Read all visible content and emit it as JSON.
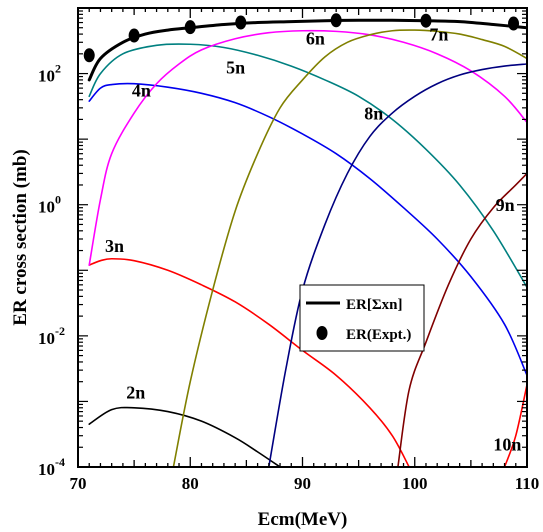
{
  "chart_data": {
    "type": "line",
    "title": "",
    "xlabel": "Ecm(MeV)",
    "ylabel": "ER cross section (mb)",
    "xlim": [
      70,
      110
    ],
    "ylim": [
      0.0001,
      1000
    ],
    "yscale": "log",
    "x_ticks": [
      {
        "value": 70,
        "label": "70"
      },
      {
        "value": 80,
        "label": "80"
      },
      {
        "value": 90,
        "label": "90"
      },
      {
        "value": 100,
        "label": "100"
      },
      {
        "value": 110,
        "label": "110"
      }
    ],
    "y_ticks": [
      {
        "value": 0.0001,
        "base": "10",
        "exp": "-4"
      },
      {
        "value": 0.01,
        "base": "10",
        "exp": "-2"
      },
      {
        "value": 1,
        "base": "10",
        "exp": "0"
      },
      {
        "value": 100,
        "base": "10",
        "exp": "2"
      }
    ],
    "grid": false,
    "legend_position": "center-right",
    "legend": [
      {
        "label": "ER[Σxn]",
        "marker": "line",
        "color": "#000000"
      },
      {
        "label": "ER(Expt.)",
        "marker": "dot",
        "color": "#000000"
      }
    ],
    "series": [
      {
        "label": "2n",
        "color": "#000000",
        "label_at": [
          74.3,
          0.0011
        ],
        "points": [
          [
            71,
            0.00045
          ],
          [
            73,
            0.00075
          ],
          [
            75,
            0.0008
          ],
          [
            78,
            0.0007
          ],
          [
            81,
            0.0005
          ],
          [
            84,
            0.00028
          ],
          [
            86,
            0.00017
          ],
          [
            88,
            0.0001
          ]
        ]
      },
      {
        "label": "3n",
        "color": "#ff0000",
        "label_at": [
          72.4,
          0.19
        ],
        "points": [
          [
            71,
            0.12
          ],
          [
            72,
            0.14
          ],
          [
            73,
            0.15
          ],
          [
            75,
            0.14
          ],
          [
            78,
            0.1
          ],
          [
            81,
            0.06
          ],
          [
            84,
            0.033
          ],
          [
            87,
            0.015
          ],
          [
            90,
            0.006
          ],
          [
            93,
            0.0025
          ],
          [
            96,
            0.0008
          ],
          [
            98,
            0.0003
          ],
          [
            99.5,
            0.0001
          ]
        ]
      },
      {
        "label": "4n",
        "color": "#0000ee",
        "label_at": [
          74.8,
          45
        ],
        "points": [
          [
            71,
            38
          ],
          [
            72,
            60
          ],
          [
            73,
            68
          ],
          [
            75,
            70
          ],
          [
            78,
            62
          ],
          [
            81,
            50
          ],
          [
            84,
            36
          ],
          [
            87,
            22
          ],
          [
            90,
            12
          ],
          [
            93,
            6
          ],
          [
            96,
            2.5
          ],
          [
            99,
            0.9
          ],
          [
            102,
            0.3
          ],
          [
            105,
            0.08
          ],
          [
            108,
            0.015
          ],
          [
            110,
            0.0025
          ]
        ]
      },
      {
        "label": "5n",
        "color": "#008080",
        "label_at": [
          83.2,
          100
        ],
        "points": [
          [
            71,
            45
          ],
          [
            72,
            100
          ],
          [
            74,
            200
          ],
          [
            77,
            270
          ],
          [
            80,
            280
          ],
          [
            83,
            250
          ],
          [
            86,
            190
          ],
          [
            89,
            130
          ],
          [
            92,
            80
          ],
          [
            95,
            45
          ],
          [
            98,
            20
          ],
          [
            101,
            7
          ],
          [
            104,
            2
          ],
          [
            107,
            0.4
          ],
          [
            110,
            0.055
          ]
        ]
      },
      {
        "label": "6n",
        "color": "#ff00ff",
        "label_at": [
          90.3,
          280
        ],
        "points": [
          [
            71,
            0.12
          ],
          [
            72,
            1.2
          ],
          [
            73,
            6
          ],
          [
            75,
            25
          ],
          [
            77,
            70
          ],
          [
            79,
            140
          ],
          [
            81,
            230
          ],
          [
            84,
            340
          ],
          [
            87,
            420
          ],
          [
            90,
            450
          ],
          [
            93,
            440
          ],
          [
            96,
            390
          ],
          [
            99,
            300
          ],
          [
            102,
            200
          ],
          [
            105,
            110
          ],
          [
            108,
            45
          ],
          [
            110,
            18
          ]
        ]
      },
      {
        "label": "7n",
        "color": "#808000",
        "label_at": [
          101.3,
          320
        ],
        "points": [
          [
            78.5,
            0.0001
          ],
          [
            80,
            0.002
          ],
          [
            82,
            0.05
          ],
          [
            84,
            0.8
          ],
          [
            86,
            6
          ],
          [
            88,
            30
          ],
          [
            90,
            80
          ],
          [
            92,
            180
          ],
          [
            94,
            300
          ],
          [
            96,
            390
          ],
          [
            98,
            450
          ],
          [
            100,
            460
          ],
          [
            102,
            440
          ],
          [
            104,
            400
          ],
          [
            106,
            330
          ],
          [
            108,
            260
          ],
          [
            110,
            170
          ]
        ]
      },
      {
        "label": "8n",
        "color": "#000080",
        "label_at": [
          95.5,
          20
        ],
        "points": [
          [
            87,
            0.0001
          ],
          [
            88.5,
            0.003
          ],
          [
            90,
            0.05
          ],
          [
            92,
            0.5
          ],
          [
            94,
            3
          ],
          [
            96,
            11
          ],
          [
            98,
            25
          ],
          [
            100,
            45
          ],
          [
            102,
            70
          ],
          [
            104,
            95
          ],
          [
            106,
            115
          ],
          [
            108,
            130
          ],
          [
            110,
            140
          ]
        ]
      },
      {
        "label": "9n",
        "color": "#800000",
        "label_at": [
          107.2,
          0.8
        ],
        "points": [
          [
            98.5,
            0.0001
          ],
          [
            99.5,
            0.0015
          ],
          [
            101,
            0.008
          ],
          [
            103,
            0.06
          ],
          [
            105,
            0.3
          ],
          [
            107,
            0.9
          ],
          [
            109,
            2
          ],
          [
            110,
            3
          ]
        ]
      },
      {
        "label": "10n",
        "color": "#ff0000",
        "label_at": [
          107.0,
          0.00018
        ],
        "points": [
          [
            108,
            0.0001
          ],
          [
            109,
            0.0003
          ],
          [
            110,
            0.0018
          ]
        ]
      },
      {
        "label": "ER[Σxn]",
        "color": "#000000",
        "thick": true,
        "points": [
          [
            71,
            80
          ],
          [
            72,
            170
          ],
          [
            74,
            300
          ],
          [
            76,
            400
          ],
          [
            78,
            460
          ],
          [
            80,
            500
          ],
          [
            83,
            560
          ],
          [
            86,
            600
          ],
          [
            89,
            620
          ],
          [
            92,
            640
          ],
          [
            95,
            650
          ],
          [
            98,
            650
          ],
          [
            101,
            640
          ],
          [
            104,
            620
          ],
          [
            107,
            560
          ],
          [
            110,
            500
          ]
        ]
      }
    ],
    "expt_points": [
      [
        71,
        190
      ],
      [
        75,
        380
      ],
      [
        80,
        510
      ],
      [
        84.5,
        600
      ],
      [
        93,
        650
      ],
      [
        101,
        640
      ],
      [
        108.8,
        580
      ]
    ]
  }
}
